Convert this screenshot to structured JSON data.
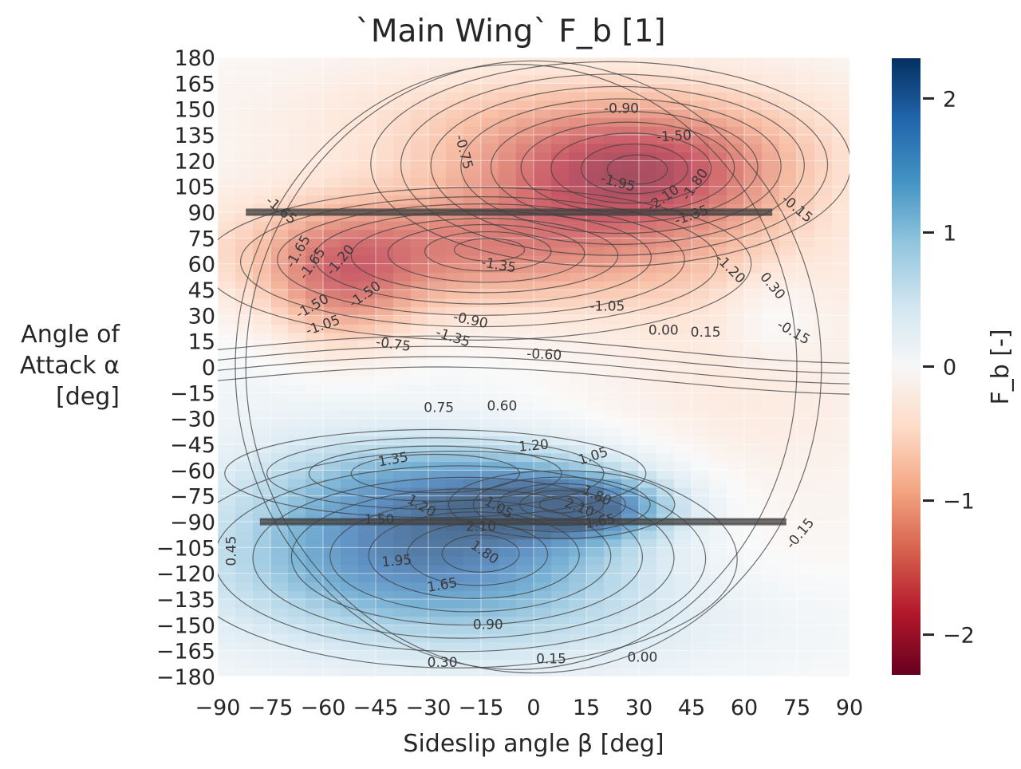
{
  "chart_data": {
    "type": "heatmap",
    "title": "`Main Wing` F_b [1]",
    "xlabel": "Sideslip angle β [deg]",
    "ylabel": [
      "Angle of",
      "Attack α",
      "[deg]"
    ],
    "x_ticks": [
      -90,
      -75,
      -60,
      -45,
      -30,
      -15,
      0,
      15,
      30,
      45,
      60,
      75,
      90
    ],
    "y_ticks": [
      180,
      165,
      150,
      135,
      120,
      105,
      90,
      75,
      60,
      45,
      30,
      15,
      0,
      -15,
      -30,
      -45,
      -60,
      -75,
      -90,
      -105,
      -120,
      -135,
      -150,
      -165,
      -180
    ],
    "xlim": [
      -90,
      90
    ],
    "ylim": [
      -180,
      180
    ],
    "colorbar": {
      "label": "F_b [-]",
      "range": [
        -2.3,
        2.3
      ],
      "ticks": [
        2,
        1,
        0,
        -1,
        -2
      ],
      "colormap": "RdBu",
      "colors": [
        "#67001f",
        "#b2182b",
        "#d6604d",
        "#f4a582",
        "#fddbc7",
        "#f7f7f7",
        "#d1e5f0",
        "#92c5de",
        "#4393c3",
        "#2166ac",
        "#053061"
      ]
    },
    "grid": true,
    "contour_labels": [
      {
        "text": "-0.90",
        "x": 25,
        "y": 150,
        "angle": 0
      },
      {
        "text": "-1.50",
        "x": 40,
        "y": 134,
        "angle": 3
      },
      {
        "text": "-0.75",
        "x": -20,
        "y": 125,
        "angle": -75
      },
      {
        "text": "-1.95",
        "x": 24,
        "y": 107,
        "angle": -15
      },
      {
        "text": "-1.80",
        "x": 46,
        "y": 106,
        "angle": 55
      },
      {
        "text": "-2.10",
        "x": 37,
        "y": 98,
        "angle": 35
      },
      {
        "text": "-1.35",
        "x": 45,
        "y": 88,
        "angle": 20
      },
      {
        "text": "-1.65",
        "x": -72,
        "y": 91,
        "angle": -40
      },
      {
        "text": "-1.65",
        "x": -67,
        "y": 67,
        "angle": 60
      },
      {
        "text": "-1.65",
        "x": -63,
        "y": 60,
        "angle": 55
      },
      {
        "text": "-1.20",
        "x": -55,
        "y": 62,
        "angle": 50
      },
      {
        "text": "-1.50",
        "x": -48,
        "y": 42,
        "angle": 35
      },
      {
        "text": "-1.50",
        "x": -63,
        "y": 35,
        "angle": 30
      },
      {
        "text": "-1.05",
        "x": -60,
        "y": 24,
        "angle": 20
      },
      {
        "text": "-0.90",
        "x": -18,
        "y": 27,
        "angle": -12
      },
      {
        "text": "-1.35",
        "x": -23,
        "y": 17,
        "angle": -18
      },
      {
        "text": "-0.75",
        "x": -40,
        "y": 13,
        "angle": -8
      },
      {
        "text": "-0.60",
        "x": 3,
        "y": 7,
        "angle": -3
      },
      {
        "text": "-1.35",
        "x": -10,
        "y": 59,
        "angle": -10
      },
      {
        "text": "-1.05",
        "x": 21,
        "y": 35,
        "angle": 0
      },
      {
        "text": "-1.20",
        "x": 56,
        "y": 57,
        "angle": -45
      },
      {
        "text": "0.30",
        "x": 68,
        "y": 47,
        "angle": -50
      },
      {
        "text": "0.00",
        "x": 37,
        "y": 21,
        "angle": 0
      },
      {
        "text": "0.15",
        "x": 49,
        "y": 20,
        "angle": 0
      },
      {
        "text": "-0.15",
        "x": 74,
        "y": 20,
        "angle": -30
      },
      {
        "text": "-0.15",
        "x": 75,
        "y": 92,
        "angle": -40
      },
      {
        "text": "0.75",
        "x": -27,
        "y": -24,
        "angle": 0
      },
      {
        "text": "0.60",
        "x": -9,
        "y": -23,
        "angle": 0
      },
      {
        "text": "1.20",
        "x": 0,
        "y": -46,
        "angle": 5
      },
      {
        "text": "1.05",
        "x": 17,
        "y": -52,
        "angle": 18
      },
      {
        "text": "1.35",
        "x": -40,
        "y": -54,
        "angle": 10
      },
      {
        "text": "1.20",
        "x": -32,
        "y": -81,
        "angle": -30
      },
      {
        "text": "1.05",
        "x": -10,
        "y": -82,
        "angle": -30
      },
      {
        "text": "1.80",
        "x": 18,
        "y": -75,
        "angle": -25
      },
      {
        "text": "2.10",
        "x": 13,
        "y": -82,
        "angle": -20
      },
      {
        "text": "1.65",
        "x": 19,
        "y": -90,
        "angle": 10
      },
      {
        "text": "1.50",
        "x": -44,
        "y": -89,
        "angle": 0
      },
      {
        "text": "2.10",
        "x": -15,
        "y": -93,
        "angle": 0
      },
      {
        "text": "1.80",
        "x": -14,
        "y": -108,
        "angle": -35
      },
      {
        "text": "1.95",
        "x": -39,
        "y": -113,
        "angle": 5
      },
      {
        "text": "1.65",
        "x": -26,
        "y": -127,
        "angle": 10
      },
      {
        "text": "0.90",
        "x": -13,
        "y": -150,
        "angle": 0
      },
      {
        "text": "0.45",
        "x": -86,
        "y": -107,
        "angle": 90
      },
      {
        "text": "0.30",
        "x": -26,
        "y": -172,
        "angle": 0
      },
      {
        "text": "0.15",
        "x": 5,
        "y": -170,
        "angle": 0
      },
      {
        "text": "0.00",
        "x": 31,
        "y": -169,
        "angle": 0
      },
      {
        "text": "-0.15",
        "x": 76,
        "y": -97,
        "angle": 50
      }
    ]
  }
}
